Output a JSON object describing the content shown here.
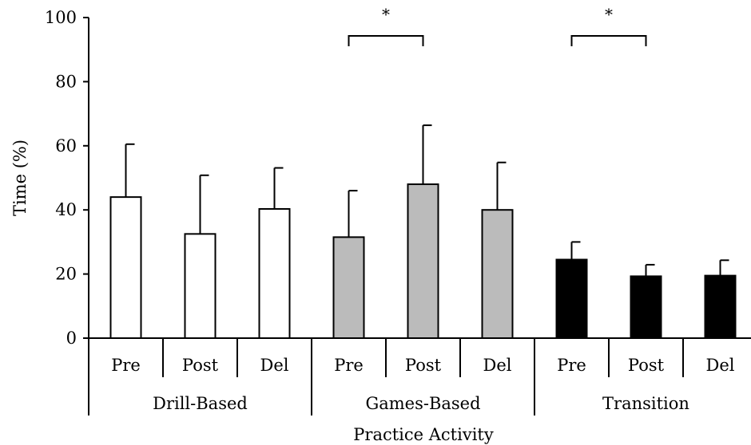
{
  "chart_data": {
    "type": "bar",
    "title": "",
    "xlabel": "Practice Activity",
    "ylabel": "Time (%)",
    "ylim": [
      0,
      100
    ],
    "yticks": [
      0,
      20,
      40,
      60,
      80,
      100
    ],
    "grid": false,
    "groups": [
      {
        "name": "Drill-Based",
        "color": "#ffffff",
        "bars": [
          {
            "label": "Pre",
            "value": 44,
            "error": 16.5
          },
          {
            "label": "Post",
            "value": 32.5,
            "error": 18.3
          },
          {
            "label": "Del",
            "value": 40.3,
            "error": 12.8
          }
        ]
      },
      {
        "name": "Games-Based",
        "color": "#bbbbbb",
        "bars": [
          {
            "label": "Pre",
            "value": 31.5,
            "error": 14.5
          },
          {
            "label": "Post",
            "value": 48,
            "error": 18.4
          },
          {
            "label": "Del",
            "value": 40,
            "error": 14.8
          }
        ]
      },
      {
        "name": "Transition",
        "color": "#000000",
        "bars": [
          {
            "label": "Pre",
            "value": 24.5,
            "error": 5.5
          },
          {
            "label": "Post",
            "value": 19.3,
            "error": 3.6
          },
          {
            "label": "Del",
            "value": 19.5,
            "error": 4.8
          }
        ]
      }
    ],
    "significance": [
      {
        "group": 1,
        "from": 0,
        "to": 1,
        "label": "*"
      },
      {
        "group": 2,
        "from": 0,
        "to": 1,
        "label": "*"
      }
    ]
  }
}
